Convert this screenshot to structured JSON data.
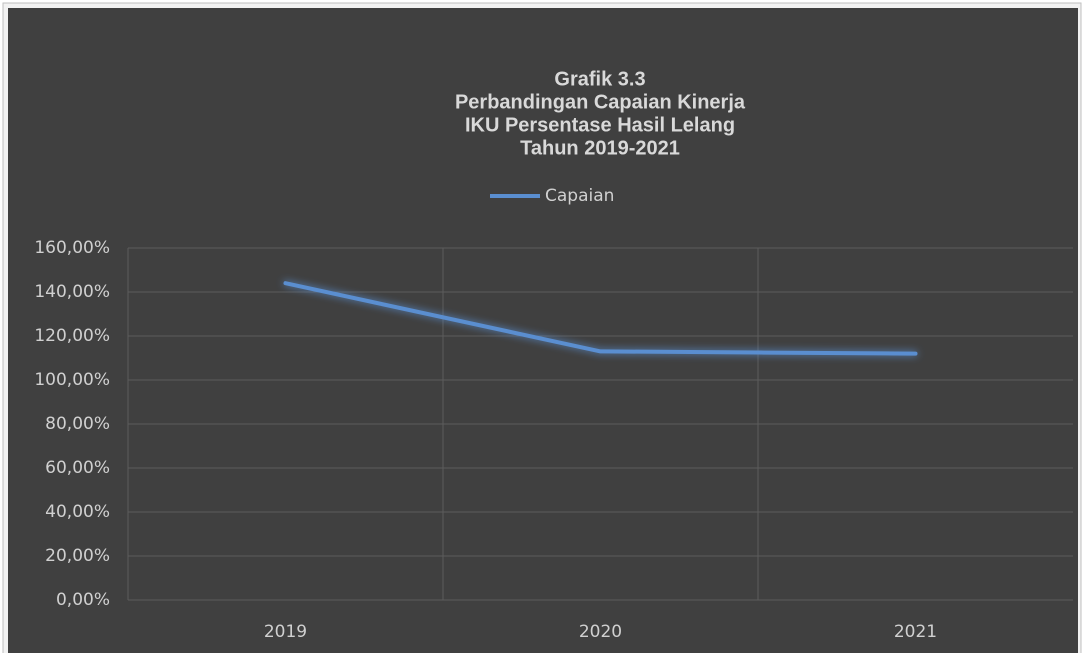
{
  "chart_data": {
    "type": "line",
    "title": [
      "Grafik 3.3",
      "Perbandingan Capaian Kinerja",
      "IKU Persentase Hasil Lelang",
      "Tahun  2019-2021"
    ],
    "categories": [
      "2019",
      "2020",
      "2021"
    ],
    "series": [
      {
        "name": "Capaian",
        "color": "#5a8ed0",
        "values": [
          144,
          113,
          112
        ]
      }
    ],
    "ylim": [
      0,
      160
    ],
    "yticks": [
      {
        "value": 0,
        "label": "0,00%"
      },
      {
        "value": 20,
        "label": "20,00%"
      },
      {
        "value": 40,
        "label": "40,00%"
      },
      {
        "value": 60,
        "label": "60,00%"
      },
      {
        "value": 80,
        "label": "80,00%"
      },
      {
        "value": 100,
        "label": "100,00%"
      },
      {
        "value": 120,
        "label": "120,00%"
      },
      {
        "value": 140,
        "label": "140,00%"
      },
      {
        "value": 160,
        "label": "160,00%"
      }
    ],
    "grid": true,
    "legend": "top"
  }
}
